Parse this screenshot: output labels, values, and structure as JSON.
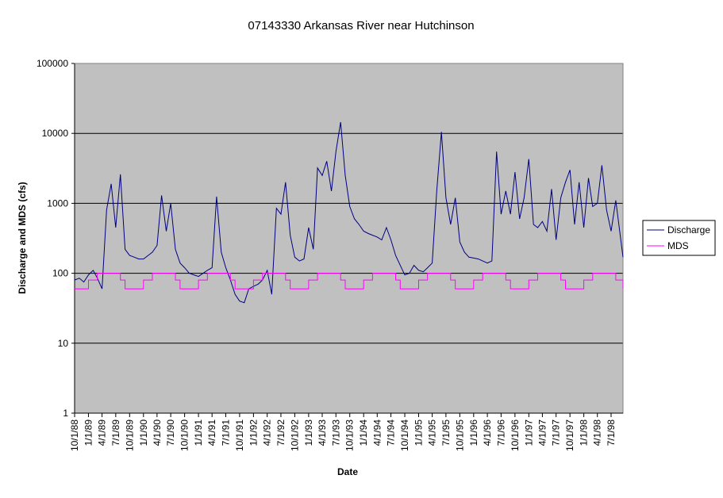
{
  "chart_data": {
    "type": "line",
    "title": "07143330 Arkansas River near Hutchinson",
    "x_label": "Date",
    "y_label": "Discharge and MDS (cfs)",
    "log_y": true,
    "grid": true,
    "legend": "right",
    "background": "#c0c0c0",
    "ylim": [
      1,
      100000
    ],
    "yticks": [
      1,
      10,
      100,
      1000,
      10000,
      100000
    ],
    "xlim": [
      "1988-10-01",
      "1998-09-18"
    ],
    "xticks": [
      {
        "value": "1988-10-01",
        "label": "10/1/88"
      },
      {
        "value": "1989-01-01",
        "label": "1/1/89"
      },
      {
        "value": "1989-04-01",
        "label": "4/1/89"
      },
      {
        "value": "1989-07-01",
        "label": "7/1/89"
      },
      {
        "value": "1989-10-01",
        "label": "10/1/89"
      },
      {
        "value": "1990-01-01",
        "label": "1/1/90"
      },
      {
        "value": "1990-04-01",
        "label": "4/1/90"
      },
      {
        "value": "1990-07-01",
        "label": "7/1/90"
      },
      {
        "value": "1990-10-01",
        "label": "10/1/90"
      },
      {
        "value": "1991-01-01",
        "label": "1/1/91"
      },
      {
        "value": "1991-04-01",
        "label": "4/1/91"
      },
      {
        "value": "1991-07-01",
        "label": "7/1/91"
      },
      {
        "value": "1991-10-01",
        "label": "10/1/91"
      },
      {
        "value": "1992-01-01",
        "label": "1/1/92"
      },
      {
        "value": "1992-04-01",
        "label": "4/1/92"
      },
      {
        "value": "1992-07-01",
        "label": "7/1/92"
      },
      {
        "value": "1992-10-01",
        "label": "10/1/92"
      },
      {
        "value": "1993-01-01",
        "label": "1/1/93"
      },
      {
        "value": "1993-04-01",
        "label": "4/1/93"
      },
      {
        "value": "1993-07-01",
        "label": "7/1/93"
      },
      {
        "value": "1993-10-01",
        "label": "10/1/93"
      },
      {
        "value": "1994-01-01",
        "label": "1/1/94"
      },
      {
        "value": "1994-04-01",
        "label": "4/1/94"
      },
      {
        "value": "1994-07-01",
        "label": "7/1/94"
      },
      {
        "value": "1994-10-01",
        "label": "10/1/94"
      },
      {
        "value": "1995-01-01",
        "label": "1/1/95"
      },
      {
        "value": "1995-04-01",
        "label": "4/1/95"
      },
      {
        "value": "1995-07-01",
        "label": "7/1/95"
      },
      {
        "value": "1995-10-01",
        "label": "10/1/95"
      },
      {
        "value": "1996-01-01",
        "label": "1/1/96"
      },
      {
        "value": "1996-04-01",
        "label": "4/1/96"
      },
      {
        "value": "1996-07-01",
        "label": "7/1/96"
      },
      {
        "value": "1996-10-01",
        "label": "10/1/96"
      },
      {
        "value": "1997-01-01",
        "label": "1/1/97"
      },
      {
        "value": "1997-04-01",
        "label": "4/1/97"
      },
      {
        "value": "1997-07-01",
        "label": "7/1/97"
      },
      {
        "value": "1997-10-01",
        "label": "10/1/97"
      },
      {
        "value": "1998-01-01",
        "label": "1/1/98"
      },
      {
        "value": "1998-04-01",
        "label": "4/1/98"
      },
      {
        "value": "1998-07-01",
        "label": "7/1/98"
      }
    ],
    "x": [
      "1988-10-01",
      "1988-11-01",
      "1988-12-01",
      "1989-01-01",
      "1989-02-01",
      "1989-03-01",
      "1989-04-01",
      "1989-05-01",
      "1989-06-01",
      "1989-07-01",
      "1989-08-01",
      "1989-09-01",
      "1989-10-01",
      "1989-11-01",
      "1989-12-01",
      "1990-01-01",
      "1990-02-01",
      "1990-03-01",
      "1990-04-01",
      "1990-05-01",
      "1990-06-01",
      "1990-07-01",
      "1990-08-01",
      "1990-09-01",
      "1990-10-01",
      "1990-11-01",
      "1990-12-01",
      "1991-01-01",
      "1991-02-01",
      "1991-03-01",
      "1991-04-01",
      "1991-05-01",
      "1991-06-01",
      "1991-07-01",
      "1991-08-01",
      "1991-09-01",
      "1991-10-01",
      "1991-11-01",
      "1991-12-01",
      "1992-01-01",
      "1992-02-01",
      "1992-03-01",
      "1992-04-01",
      "1992-05-01",
      "1992-06-01",
      "1992-07-01",
      "1992-08-01",
      "1992-09-01",
      "1992-10-01",
      "1992-11-01",
      "1992-12-01",
      "1993-01-01",
      "1993-02-01",
      "1993-03-01",
      "1993-04-01",
      "1993-05-01",
      "1993-06-01",
      "1993-07-01",
      "1993-08-01",
      "1993-09-01",
      "1993-10-01",
      "1993-11-01",
      "1993-12-01",
      "1994-01-01",
      "1994-02-01",
      "1994-03-01",
      "1994-04-01",
      "1994-05-01",
      "1994-06-01",
      "1994-07-01",
      "1994-08-01",
      "1994-09-01",
      "1994-10-01",
      "1994-11-01",
      "1994-12-01",
      "1995-01-01",
      "1995-02-01",
      "1995-03-01",
      "1995-04-01",
      "1995-05-01",
      "1995-06-01",
      "1995-07-01",
      "1995-08-01",
      "1995-09-01",
      "1995-10-01",
      "1995-11-01",
      "1995-12-01",
      "1996-01-01",
      "1996-02-01",
      "1996-03-01",
      "1996-04-01",
      "1996-05-01",
      "1996-06-01",
      "1996-07-01",
      "1996-08-01",
      "1996-09-01",
      "1996-10-01",
      "1996-11-01",
      "1996-12-01",
      "1997-01-01",
      "1997-02-01",
      "1997-03-01",
      "1997-04-01",
      "1997-05-01",
      "1997-06-01",
      "1997-07-01",
      "1997-08-01",
      "1997-09-01",
      "1997-10-01",
      "1997-11-01",
      "1997-12-01",
      "1998-01-01",
      "1998-02-01",
      "1998-03-01",
      "1998-04-01",
      "1998-05-01",
      "1998-06-01",
      "1998-07-01",
      "1998-08-01",
      "1998-09-18"
    ],
    "series": [
      {
        "name": "Discharge",
        "color": "#000080",
        "step": false,
        "values": [
          80,
          85,
          75,
          95,
          110,
          85,
          60,
          800,
          1900,
          450,
          2600,
          220,
          180,
          170,
          160,
          160,
          180,
          200,
          250,
          1300,
          400,
          1000,
          220,
          140,
          120,
          100,
          95,
          90,
          100,
          110,
          120,
          1250,
          200,
          120,
          80,
          50,
          40,
          38,
          60,
          65,
          70,
          80,
          110,
          50,
          850,
          700,
          2000,
          350,
          170,
          150,
          160,
          450,
          220,
          3200,
          2500,
          4000,
          1500,
          5500,
          14500,
          2500,
          900,
          600,
          500,
          400,
          370,
          350,
          330,
          300,
          450,
          300,
          180,
          130,
          95,
          100,
          130,
          110,
          105,
          120,
          140,
          1500,
          10500,
          1200,
          500,
          1200,
          280,
          200,
          170,
          165,
          160,
          150,
          140,
          150,
          5500,
          700,
          1500,
          700,
          2800,
          600,
          1200,
          4300,
          500,
          450,
          550,
          400,
          1600,
          300,
          1200,
          2000,
          3000,
          500,
          2000,
          450,
          2300,
          900,
          1000,
          3500,
          800,
          400,
          1100,
          170
        ]
      },
      {
        "name": "MDS",
        "color": "#ff00ff",
        "step": true,
        "values": [
          60,
          60,
          60,
          80,
          80,
          100,
          100,
          100,
          100,
          100,
          80,
          60,
          60,
          60,
          60,
          80,
          80,
          100,
          100,
          100,
          100,
          100,
          80,
          60,
          60,
          60,
          60,
          80,
          80,
          100,
          100,
          100,
          100,
          100,
          80,
          60,
          60,
          60,
          60,
          80,
          80,
          100,
          100,
          100,
          100,
          100,
          80,
          60,
          60,
          60,
          60,
          80,
          80,
          100,
          100,
          100,
          100,
          100,
          80,
          60,
          60,
          60,
          60,
          80,
          80,
          100,
          100,
          100,
          100,
          100,
          80,
          60,
          60,
          60,
          60,
          80,
          80,
          100,
          100,
          100,
          100,
          100,
          80,
          60,
          60,
          60,
          60,
          80,
          80,
          100,
          100,
          100,
          100,
          100,
          80,
          60,
          60,
          60,
          60,
          80,
          80,
          100,
          100,
          100,
          100,
          100,
          80,
          60,
          60,
          60,
          60,
          80,
          80,
          100,
          100,
          100,
          100,
          100,
          80,
          60
        ]
      }
    ]
  }
}
